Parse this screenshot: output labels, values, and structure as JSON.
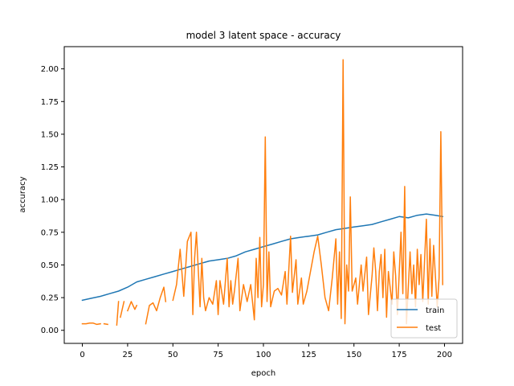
{
  "chart_data": {
    "type": "line",
    "title": "model 3 latent space - accuracy",
    "xlabel": "epoch",
    "ylabel": "accuracy",
    "xlim": [
      -10,
      210
    ],
    "ylim": [
      -0.1,
      2.17
    ],
    "xticks": [
      0,
      25,
      50,
      75,
      100,
      125,
      150,
      175,
      200
    ],
    "yticks": [
      0.0,
      0.25,
      0.5,
      0.75,
      1.0,
      1.25,
      1.5,
      1.75,
      2.0
    ],
    "ytick_labels": [
      "0.00",
      "0.25",
      "0.50",
      "0.75",
      "1.00",
      "1.25",
      "1.50",
      "1.75",
      "2.00"
    ],
    "grid": false,
    "legend_position": "lower right",
    "series": [
      {
        "name": "train",
        "color": "#1f77b4",
        "points": [
          [
            0,
            0.23
          ],
          [
            5,
            0.245
          ],
          [
            10,
            0.26
          ],
          [
            15,
            0.28
          ],
          [
            20,
            0.3
          ],
          [
            25,
            0.33
          ],
          [
            30,
            0.37
          ],
          [
            35,
            0.39
          ],
          [
            40,
            0.41
          ],
          [
            45,
            0.43
          ],
          [
            50,
            0.45
          ],
          [
            55,
            0.47
          ],
          [
            60,
            0.49
          ],
          [
            65,
            0.51
          ],
          [
            70,
            0.53
          ],
          [
            75,
            0.54
          ],
          [
            80,
            0.55
          ],
          [
            85,
            0.57
          ],
          [
            90,
            0.6
          ],
          [
            95,
            0.62
          ],
          [
            100,
            0.64
          ],
          [
            105,
            0.66
          ],
          [
            110,
            0.68
          ],
          [
            115,
            0.7
          ],
          [
            120,
            0.71
          ],
          [
            125,
            0.72
          ],
          [
            130,
            0.73
          ],
          [
            135,
            0.75
          ],
          [
            140,
            0.77
          ],
          [
            145,
            0.78
          ],
          [
            150,
            0.79
          ],
          [
            155,
            0.8
          ],
          [
            160,
            0.81
          ],
          [
            165,
            0.83
          ],
          [
            170,
            0.85
          ],
          [
            175,
            0.87
          ],
          [
            180,
            0.86
          ],
          [
            185,
            0.88
          ],
          [
            190,
            0.89
          ],
          [
            195,
            0.88
          ],
          [
            199,
            0.87
          ]
        ]
      },
      {
        "name": "test",
        "color": "#ff7f0e",
        "segments": [
          [
            [
              0,
              0.05
            ],
            [
              2,
              0.05
            ],
            [
              4,
              0.055
            ],
            [
              6,
              0.055
            ],
            [
              8,
              0.045
            ],
            [
              10,
              0.05
            ]
          ],
          [
            [
              12,
              0.05
            ],
            [
              14,
              0.045
            ]
          ],
          [
            [
              19,
              0.04
            ],
            [
              20,
              0.22
            ]
          ],
          [
            [
              21,
              0.1
            ],
            [
              23,
              0.22
            ]
          ],
          [
            [
              25,
              0.15
            ],
            [
              27,
              0.22
            ],
            [
              29,
              0.16
            ],
            [
              30,
              0.19
            ]
          ],
          [
            [
              35,
              0.05
            ],
            [
              37,
              0.19
            ],
            [
              39,
              0.21
            ],
            [
              41,
              0.15
            ],
            [
              43,
              0.25
            ],
            [
              45,
              0.33
            ],
            [
              46,
              0.22
            ]
          ],
          [
            [
              50,
              0.23
            ],
            [
              52,
              0.35
            ],
            [
              54,
              0.62
            ],
            [
              56,
              0.26
            ],
            [
              58,
              0.68
            ],
            [
              60,
              0.75
            ],
            [
              61,
              0.12
            ],
            [
              62,
              0.55
            ],
            [
              63,
              0.75
            ],
            [
              65,
              0.18
            ],
            [
              66,
              0.55
            ],
            [
              67,
              0.25
            ],
            [
              68,
              0.15
            ],
            [
              70,
              0.25
            ],
            [
              72,
              0.2
            ],
            [
              74,
              0.38
            ],
            [
              75,
              0.12
            ],
            [
              76,
              0.38
            ],
            [
              78,
              0.2
            ],
            [
              80,
              0.55
            ],
            [
              81,
              0.18
            ],
            [
              82,
              0.38
            ],
            [
              83,
              0.2
            ],
            [
              84,
              0.3
            ],
            [
              86,
              0.55
            ],
            [
              87,
              0.15
            ],
            [
              89,
              0.35
            ],
            [
              91,
              0.22
            ],
            [
              93,
              0.35
            ],
            [
              95,
              0.08
            ],
            [
              96,
              0.55
            ],
            [
              97,
              0.25
            ],
            [
              98,
              0.71
            ],
            [
              99,
              0.18
            ],
            [
              100,
              0.35
            ],
            [
              101,
              1.48
            ],
            [
              102,
              0.22
            ],
            [
              103,
              0.6
            ],
            [
              104,
              0.18
            ],
            [
              106,
              0.3
            ],
            [
              108,
              0.32
            ],
            [
              110,
              0.27
            ],
            [
              112,
              0.45
            ],
            [
              113,
              0.2
            ],
            [
              115,
              0.72
            ],
            [
              116,
              0.29
            ],
            [
              118,
              0.54
            ],
            [
              119,
              0.2
            ],
            [
              121,
              0.4
            ],
            [
              122,
              0.2
            ],
            [
              124,
              0.3
            ],
            [
              126,
              0.45
            ],
            [
              128,
              0.6
            ],
            [
              130,
              0.72
            ],
            [
              132,
              0.5
            ],
            [
              134,
              0.25
            ],
            [
              136,
              0.15
            ],
            [
              138,
              0.4
            ],
            [
              140,
              0.7
            ],
            [
              141,
              0.2
            ],
            [
              142,
              0.6
            ],
            [
              143,
              0.09
            ],
            [
              144,
              2.07
            ],
            [
              145,
              0.05
            ],
            [
              146,
              0.5
            ],
            [
              147,
              0.3
            ],
            [
              148,
              1.02
            ],
            [
              149,
              0.3
            ],
            [
              151,
              0.4
            ],
            [
              152,
              0.2
            ],
            [
              154,
              0.5
            ],
            [
              155,
              0.3
            ],
            [
              157,
              0.56
            ],
            [
              158,
              0.12
            ],
            [
              160,
              0.42
            ],
            [
              161,
              0.63
            ],
            [
              162,
              0.45
            ],
            [
              163,
              0.15
            ],
            [
              164,
              0.45
            ],
            [
              165,
              0.58
            ],
            [
              166,
              0.25
            ],
            [
              167,
              0.62
            ],
            [
              168,
              0.1
            ],
            [
              169,
              0.45
            ],
            [
              171,
              0.2
            ],
            [
              172,
              0.6
            ],
            [
              173,
              0.42
            ],
            [
              174,
              0.12
            ],
            [
              176,
              0.75
            ],
            [
              177,
              0.28
            ],
            [
              178,
              1.1
            ],
            [
              179,
              0.05
            ],
            [
              181,
              0.6
            ],
            [
              182,
              0.28
            ],
            [
              183,
              0.5
            ],
            [
              184,
              0.18
            ],
            [
              185,
              0.62
            ],
            [
              186,
              0.35
            ],
            [
              187,
              0.58
            ],
            [
              188,
              0.22
            ],
            [
              190,
              0.85
            ],
            [
              191,
              0.2
            ],
            [
              192,
              0.7
            ],
            [
              193,
              0.26
            ],
            [
              194,
              0.65
            ],
            [
              196,
              0.18
            ],
            [
              197,
              0.4
            ],
            [
              198,
              1.52
            ],
            [
              199,
              0.35
            ]
          ]
        ]
      }
    ]
  }
}
